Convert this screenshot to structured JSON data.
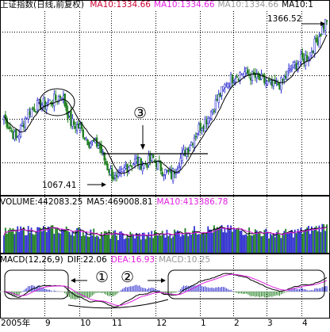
{
  "header": {
    "title": "上证指数(日线,前复权)",
    "ma_items": [
      {
        "text": "MA10:1334.66",
        "color": "#cc0033"
      },
      {
        "text": "MA10:1334.66",
        "color": "#e020e0"
      },
      {
        "text": "MA10:1334.66",
        "color": "#999999"
      },
      {
        "text": "MA10:1",
        "color": "#000000"
      }
    ]
  },
  "volume_header": {
    "items": [
      {
        "text": "VOLUME:442083.25",
        "color": "#000000"
      },
      {
        "text": "MA5:469008.81",
        "color": "#000000"
      },
      {
        "text": "MA10:413386.78",
        "color": "#e020e0"
      }
    ]
  },
  "macd_header": {
    "items": [
      {
        "text": "MACD(12,26,9)",
        "color": "#000000"
      },
      {
        "text": "DIF:22.06",
        "color": "#000000"
      },
      {
        "text": "DEA:16.93",
        "color": "#e020e0"
      },
      {
        "text": "MACD:10.25",
        "color": "#999999"
      }
    ]
  },
  "annotations": {
    "high_label": "1366.52",
    "low_label": "1067.41",
    "circled_3": "③",
    "circled_1": "①",
    "circled_2": "②"
  },
  "x_axis": {
    "labels": [
      "2005年",
      "9",
      "10",
      "11",
      "12",
      "1",
      "2",
      "3",
      "4"
    ]
  },
  "colors": {
    "up": "#3030d0",
    "down": "#208020",
    "ma_black": "#000000",
    "ma_magenta": "#e020e0",
    "grid": "#000000"
  },
  "chart_data": {
    "type": "candlestick",
    "title": "上证指数(日线,前复权)",
    "annotated_high": 1366.52,
    "annotated_low": 1067.41,
    "price_ylim": [
      1050,
      1380
    ],
    "volume_ylim": [
      0,
      900000
    ],
    "macd_ylim": [
      -40,
      40
    ],
    "latest": {
      "MA10": 1334.66,
      "VOLUME": 442083.25,
      "VOL_MA5": 469008.81,
      "VOL_MA10": 413386.78,
      "DIF": 22.06,
      "DEA": 16.93,
      "MACD": 10.25
    },
    "close_anchors": [
      [
        0,
        1190
      ],
      [
        8,
        1150
      ],
      [
        16,
        1200
      ],
      [
        22,
        1210
      ],
      [
        28,
        1215
      ],
      [
        33,
        1220
      ],
      [
        38,
        1230
      ],
      [
        44,
        1180
      ],
      [
        50,
        1170
      ],
      [
        56,
        1145
      ],
      [
        62,
        1140
      ],
      [
        68,
        1100
      ],
      [
        74,
        1075
      ],
      [
        80,
        1100
      ],
      [
        86,
        1110
      ],
      [
        92,
        1105
      ],
      [
        98,
        1115
      ],
      [
        104,
        1095
      ],
      [
        110,
        1085
      ],
      [
        116,
        1115
      ],
      [
        122,
        1140
      ],
      [
        128,
        1170
      ],
      [
        134,
        1190
      ],
      [
        140,
        1220
      ],
      [
        146,
        1250
      ],
      [
        152,
        1265
      ],
      [
        158,
        1270
      ],
      [
        164,
        1262
      ],
      [
        170,
        1255
      ],
      [
        176,
        1245
      ],
      [
        182,
        1250
      ],
      [
        188,
        1275
      ],
      [
        194,
        1290
      ],
      [
        200,
        1300
      ],
      [
        206,
        1330
      ],
      [
        212,
        1366
      ]
    ],
    "n_bars": 213
  }
}
